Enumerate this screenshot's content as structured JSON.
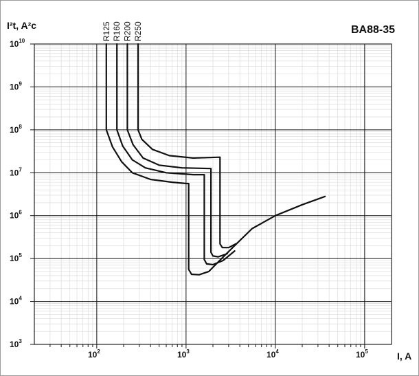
{
  "chart_data": {
    "type": "line",
    "title": "BA88-35",
    "ylabel": "I²t, A²c",
    "xlabel": "I, A",
    "x_scale": "log",
    "y_scale": "log",
    "xlim": [
      20,
      200000
    ],
    "ylim": [
      1000,
      10000000000
    ],
    "x_ticks": [
      100,
      1000,
      10000,
      100000
    ],
    "y_ticks": [
      1000,
      10000,
      100000,
      1000000,
      10000000,
      100000000,
      1000000000,
      10000000000
    ],
    "grid": true,
    "series": [
      {
        "name": "R125",
        "points": [
          [
            128,
            10000000000
          ],
          [
            128,
            100000000
          ],
          [
            150,
            40000000
          ],
          [
            190,
            18000000
          ],
          [
            250,
            10000000
          ],
          [
            400,
            7000000
          ],
          [
            700,
            6000000
          ],
          [
            1000,
            5600000
          ],
          [
            1070,
            5600000
          ],
          [
            1070,
            56000
          ],
          [
            1150,
            43000
          ],
          [
            1400,
            42000
          ],
          [
            1800,
            50000
          ],
          [
            2500,
            100000
          ],
          [
            3500,
            200000
          ],
          [
            5500,
            500000
          ],
          [
            10000,
            1000000
          ],
          [
            20000,
            1800000
          ],
          [
            36000,
            2800000
          ]
        ]
      },
      {
        "name": "R160",
        "points": [
          [
            168,
            10000000000
          ],
          [
            168,
            100000000
          ],
          [
            195,
            42000000
          ],
          [
            250,
            20000000
          ],
          [
            350,
            13000000
          ],
          [
            600,
            10000000
          ],
          [
            1200,
            9000000
          ],
          [
            1600,
            9000000
          ],
          [
            1600,
            95000
          ],
          [
            1700,
            75000
          ],
          [
            2000,
            72000
          ],
          [
            2600,
            90000
          ],
          [
            3500,
            150000
          ]
        ]
      },
      {
        "name": "R200",
        "points": [
          [
            220,
            10000000000
          ],
          [
            220,
            100000000
          ],
          [
            255,
            45000000
          ],
          [
            330,
            22000000
          ],
          [
            500,
            15000000
          ],
          [
            900,
            13000000
          ],
          [
            1900,
            12500000
          ],
          [
            1900,
            140000
          ],
          [
            2000,
            115000
          ],
          [
            2300,
            110000
          ],
          [
            2900,
            130000
          ]
        ]
      },
      {
        "name": "R250",
        "points": [
          [
            290,
            10000000000
          ],
          [
            290,
            100000000
          ],
          [
            320,
            60000000
          ],
          [
            420,
            35000000
          ],
          [
            650,
            25000000
          ],
          [
            1200,
            22000000
          ],
          [
            2400,
            23000000
          ],
          [
            2400,
            220000
          ],
          [
            2550,
            180000
          ],
          [
            3000,
            180000
          ],
          [
            3600,
            220000
          ]
        ]
      }
    ]
  }
}
